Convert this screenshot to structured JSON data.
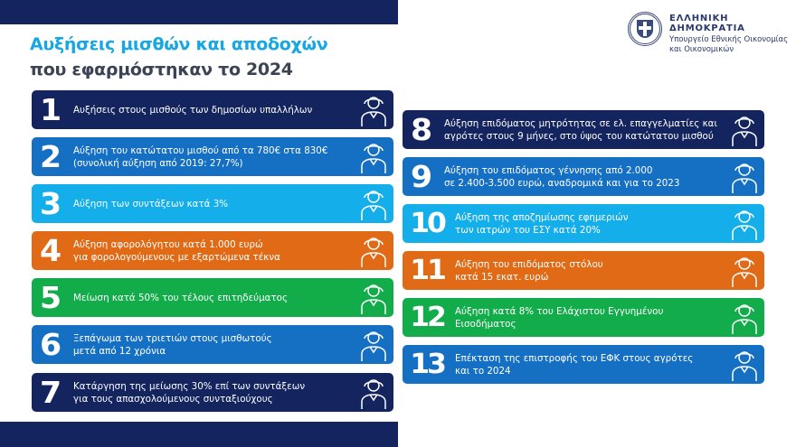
{
  "header": {
    "title_line1": "Αυξήσεις μισθών και αποδοχών",
    "title_line2": "που εφαρμόστηκαν το 2024"
  },
  "org": {
    "name": "ΕΛΛΗΝΙΚΗ ΔΗΜΟΚΡΑΤΙΑ",
    "ministry_line1": "Υπουργείο Εθνικής Οικονομίας",
    "ministry_line2": "και Οικονομικών"
  },
  "colors": {
    "navy": "#14245e",
    "blue": "#1570c4",
    "sky": "#14aeea",
    "orange": "#e06a16",
    "green": "#13ac4b",
    "title_accent": "#16a7e4"
  },
  "items": [
    {
      "num": "1",
      "line1": "Αυξήσεις στους μισθούς των δημοσίων υπαλλήλων",
      "line2": "",
      "color": "navy",
      "icon": "office-worker-icon"
    },
    {
      "num": "2",
      "line1": "Αύξηση του κατώτατου μισθού από τα 780€ στα 830€",
      "line2": "(συνολική αύξηση από 2019: 27,7%)",
      "color": "blue",
      "icon": "construction-worker-icon"
    },
    {
      "num": "3",
      "line1": "Αύξηση των συντάξεων κατά 3%",
      "line2": "",
      "color": "sky",
      "icon": "elderly-couple-icon"
    },
    {
      "num": "4",
      "line1": "Αύξηση αφορολόγητου κατά 1.000 ευρώ",
      "line2": "για φορολογούμενους με εξαρτώμενα τέκνα",
      "color": "orange",
      "icon": "family-icon"
    },
    {
      "num": "5",
      "line1": "Μείωση κατά 50% του τέλους επιτηδεύματος",
      "line2": "",
      "color": "green",
      "icon": "professional-briefcase-icon"
    },
    {
      "num": "6",
      "line1": "Ξεπάγωμα των τριετιών στους μισθωτούς",
      "line2": "μετά από 12 χρόνια",
      "color": "blue",
      "icon": "factory-worker-icon"
    },
    {
      "num": "7",
      "line1": "Κατάργηση της μείωσης 30% επί των συντάξεων",
      "line2": "για τους απασχολούμενους συνταξιούχους",
      "color": "navy",
      "icon": "desk-worker-icon"
    },
    {
      "num": "8",
      "line1": "Αύξηση επιδόματος μητρότητας σε ελ. επαγγελματίες και",
      "line2": "αγρότες στους 9 μήνες, στο ύψος του κατώτατου μισθού",
      "color": "navy",
      "icon": "farmer-woman-icon"
    },
    {
      "num": "9",
      "line1": "Αύξηση του επιδόματος γέννησης από 2.000",
      "line2": "σε 2.400-3.500 ευρώ, αναδρομικά και για το 2023",
      "color": "blue",
      "icon": "mother-baby-icon"
    },
    {
      "num": "10",
      "line1": "Αύξηση της αποζημίωσης εφημεριών",
      "line2": "των ιατρών του ΕΣΥ κατά 20%",
      "color": "sky",
      "icon": "doctor-icon"
    },
    {
      "num": "11",
      "line1": "Αύξηση του επιδόματος στόλου",
      "line2": "κατά 15 εκατ. ευρώ",
      "color": "orange",
      "icon": "navy-officer-icon"
    },
    {
      "num": "12",
      "line1": "Αύξηση κατά 8% του Ελάχιστου Εγγυημένου",
      "line2": "Εισοδήματος",
      "color": "green",
      "icon": "couple-icon"
    },
    {
      "num": "13",
      "line1": "Επέκταση της επιστροφής του ΕΦΚ στους αγρότες",
      "line2": "και το 2024",
      "color": "blue",
      "icon": "farmer-icon"
    }
  ]
}
